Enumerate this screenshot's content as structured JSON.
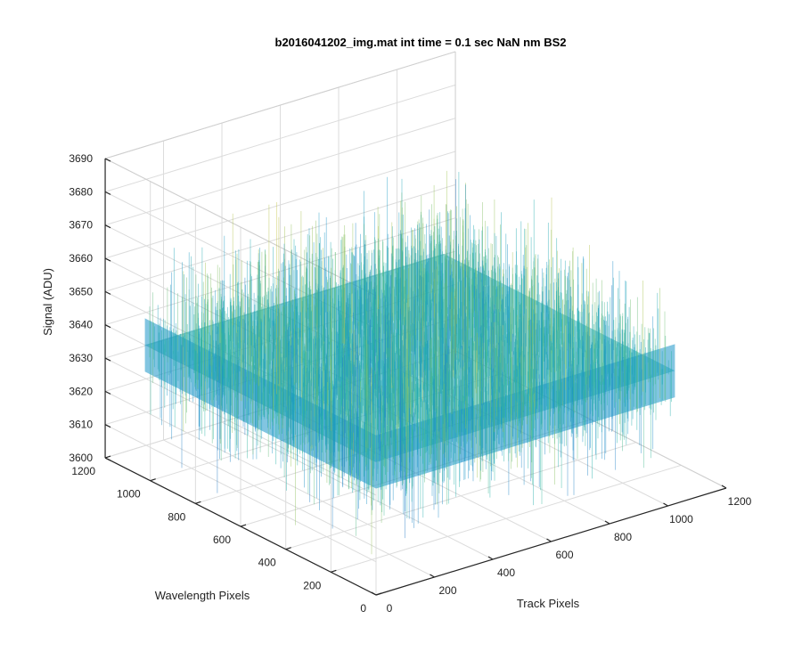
{
  "chart_data": {
    "type": "surface",
    "title": "b2016041202_img.mat int time = 0.1 sec  NaN nm BS2",
    "xlabel": "Track Pixels",
    "ylabel": "Wavelength Pixels",
    "zlabel": "Signal (ADU)",
    "xlim": [
      0,
      1200
    ],
    "ylim": [
      0,
      1200
    ],
    "zlim": [
      3600,
      3690
    ],
    "x_ticks": [
      "0",
      "200",
      "400",
      "600",
      "800",
      "1000",
      "1200"
    ],
    "y_ticks": [
      "0",
      "200",
      "400",
      "600",
      "800",
      "1000",
      "1200"
    ],
    "z_ticks": [
      "3600",
      "3610",
      "3620",
      "3630",
      "3640",
      "3650",
      "3660",
      "3670",
      "3680",
      "3690"
    ],
    "data_extent": {
      "x": [
        0,
        1024
      ],
      "y": [
        0,
        1024
      ]
    },
    "signal_mean": 3640,
    "signal_range": [
      3605,
      3685
    ],
    "grid": true,
    "colormap": "parula",
    "colors": {
      "low": "#1f77c4",
      "mid": "#25b5a6",
      "high": "#e0c23b"
    }
  }
}
